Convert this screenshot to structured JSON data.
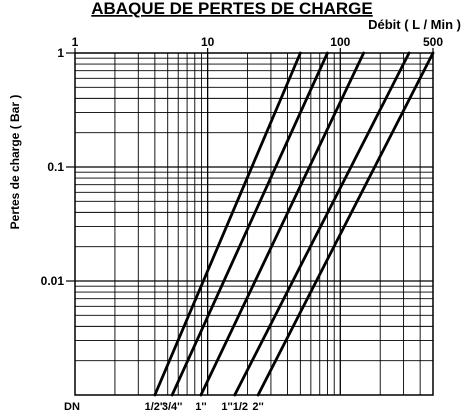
{
  "chart_data": {
    "type": "line",
    "title": "ABAQUE DE PERTES DE CHARGE",
    "xlabel": "Débit ( L / Min )",
    "ylabel": "Pertes de charge ( Bar )",
    "x_scale": "log",
    "y_scale": "log",
    "xlim": [
      1,
      500
    ],
    "ylim": [
      0.001,
      1
    ],
    "grid": true,
    "x_ticks": [
      {
        "value": 1,
        "label": "1"
      },
      {
        "value": 10,
        "label": "10"
      },
      {
        "value": 100,
        "label": "100"
      },
      {
        "value": 500,
        "label": "500"
      }
    ],
    "y_ticks": [
      {
        "value": 1,
        "label": "1"
      },
      {
        "value": 0.1,
        "label": "0.1"
      },
      {
        "value": 0.01,
        "label": "0.01"
      }
    ],
    "dn_prefix": "DN",
    "series": [
      {
        "name": "1/2''",
        "points": [
          [
            4.0,
            0.001
          ],
          [
            50,
            1
          ]
        ]
      },
      {
        "name": "3/4''",
        "points": [
          [
            5.4,
            0.001
          ],
          [
            80,
            1
          ]
        ]
      },
      {
        "name": "1''",
        "points": [
          [
            8.9,
            0.001
          ],
          [
            150,
            1
          ]
        ]
      },
      {
        "name": "1''1/2",
        "points": [
          [
            16,
            0.001
          ],
          [
            330,
            1
          ]
        ]
      },
      {
        "name": "2''",
        "points": [
          [
            24,
            0.001
          ],
          [
            500,
            1
          ]
        ]
      }
    ]
  }
}
